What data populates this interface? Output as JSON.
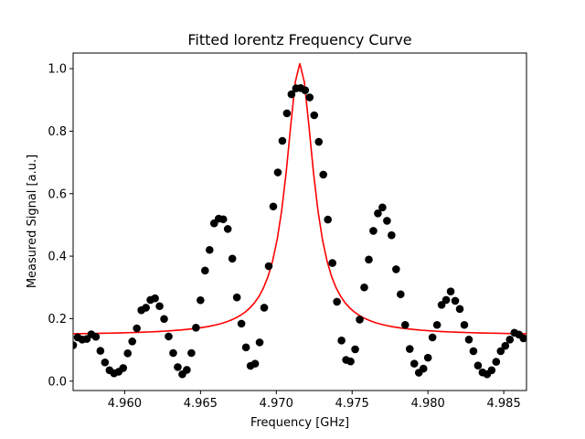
{
  "chart_data": {
    "type": "scatter",
    "title": "Fitted lorentz Frequency Curve",
    "xlabel": "Frequency [GHz]",
    "ylabel": "Measured Signal [a.u.]",
    "xlim": [
      4.9566,
      4.9865
    ],
    "ylim": [
      -0.03,
      1.05
    ],
    "xticks": [
      {
        "value": 4.96,
        "label": "4.960"
      },
      {
        "value": 4.965,
        "label": "4.965"
      },
      {
        "value": 4.97,
        "label": "4.970"
      },
      {
        "value": 4.975,
        "label": "4.975"
      },
      {
        "value": 4.98,
        "label": "4.980"
      },
      {
        "value": 4.985,
        "label": "4.985"
      }
    ],
    "yticks": [
      {
        "value": 0.0,
        "label": "0.0"
      },
      {
        "value": 0.2,
        "label": "0.2"
      },
      {
        "value": 0.4,
        "label": "0.4"
      },
      {
        "value": 0.6,
        "label": "0.6"
      },
      {
        "value": 0.8,
        "label": "0.8"
      },
      {
        "value": 1.0,
        "label": "1.0"
      }
    ],
    "grid": false,
    "series": [
      {
        "kind": "points",
        "color": "#000000",
        "x": [
          4.9566,
          4.9569,
          4.9572,
          4.9575,
          4.9578,
          4.9581,
          4.9584,
          4.9587,
          4.959,
          4.9593,
          4.9596,
          4.9599,
          4.9602,
          4.9605,
          4.9608,
          4.9611,
          4.9614,
          4.9617,
          4.962,
          4.9623,
          4.9626,
          4.9629,
          4.9632,
          4.9635,
          4.9638,
          4.9641,
          4.9644,
          4.9647,
          4.965,
          4.9653,
          4.9656,
          4.9659,
          4.9662,
          4.9665,
          4.9668,
          4.9671,
          4.9674,
          4.9677,
          4.968,
          4.9683,
          4.9686,
          4.9689,
          4.9692,
          4.9695,
          4.9698,
          4.9701,
          4.9704,
          4.9707,
          4.971,
          4.9713,
          4.9716,
          4.9719,
          4.9722,
          4.9725,
          4.9728,
          4.9731,
          4.9734,
          4.9737,
          4.974,
          4.9743,
          4.9746,
          4.9749,
          4.9752,
          4.9755,
          4.9758,
          4.9761,
          4.9764,
          4.9767,
          4.977,
          4.9773,
          4.9776,
          4.9779,
          4.9782,
          4.9785,
          4.9788,
          4.9791,
          4.9794,
          4.9797,
          4.98,
          4.9803,
          4.9806,
          4.9809,
          4.9812,
          4.9815,
          4.9818,
          4.9821,
          4.9824,
          4.9827,
          4.983,
          4.9833,
          4.9836,
          4.9839,
          4.9842,
          4.9845,
          4.9848,
          4.9851,
          4.9854,
          4.9857,
          4.986,
          4.9863
        ],
        "y": [
          0.115,
          0.14,
          0.133,
          0.135,
          0.15,
          0.142,
          0.097,
          0.06,
          0.035,
          0.025,
          0.03,
          0.042,
          0.089,
          0.127,
          0.169,
          0.227,
          0.235,
          0.26,
          0.265,
          0.24,
          0.199,
          0.143,
          0.09,
          0.045,
          0.022,
          0.036,
          0.09,
          0.171,
          0.259,
          0.354,
          0.42,
          0.505,
          0.52,
          0.518,
          0.487,
          0.392,
          0.268,
          0.184,
          0.108,
          0.049,
          0.056,
          0.124,
          0.235,
          0.368,
          0.559,
          0.668,
          0.769,
          0.857,
          0.918,
          0.937,
          0.938,
          0.931,
          0.908,
          0.851,
          0.766,
          0.661,
          0.517,
          0.378,
          0.254,
          0.13,
          0.068,
          0.063,
          0.102,
          0.197,
          0.3,
          0.389,
          0.481,
          0.537,
          0.556,
          0.513,
          0.467,
          0.358,
          0.278,
          0.18,
          0.103,
          0.056,
          0.027,
          0.04,
          0.075,
          0.14,
          0.18,
          0.244,
          0.26,
          0.287,
          0.257,
          0.231,
          0.18,
          0.133,
          0.096,
          0.05,
          0.028,
          0.022,
          0.035,
          0.062,
          0.096,
          0.113,
          0.133,
          0.155,
          0.149,
          0.137
        ]
      },
      {
        "kind": "line",
        "color": "#ff0000",
        "fit": {
          "model": "lorentzian",
          "x0": 4.97155,
          "gamma": 0.0011,
          "amplitude": 0.87,
          "offset": 0.147
        }
      }
    ]
  }
}
